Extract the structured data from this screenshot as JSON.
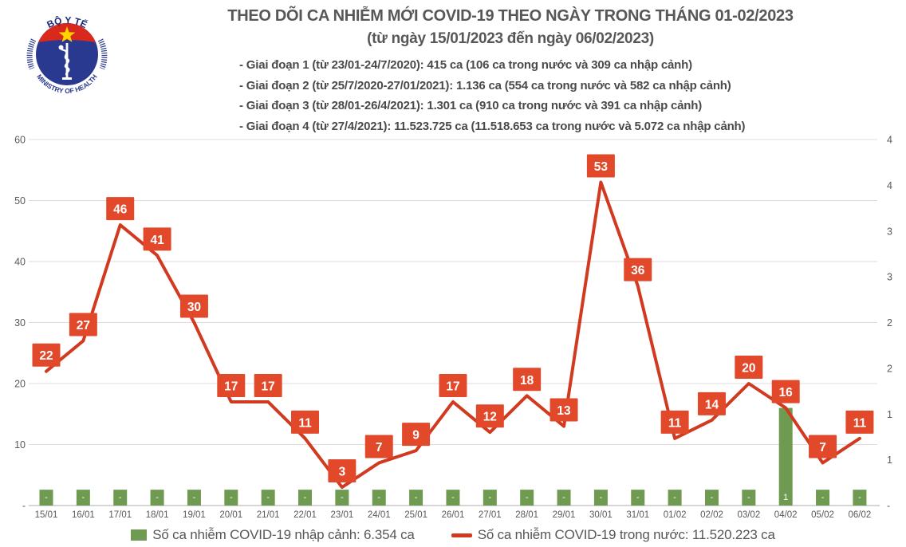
{
  "logo": {
    "top_text": "BỘ Y TẾ",
    "bottom_text": "MINISTRY OF HEALTH"
  },
  "header": {
    "title_line1": "THEO DÕI CA NHIỄM MỚI COVID-19 THEO NGÀY TRONG THÁNG 01-02/2023",
    "title_line2": "(từ ngày 15/01/2023 đến ngày 06/02/2023)",
    "bullets": [
      "- Giai đoạn 1 (từ 23/01-24/7/2020): 415 ca (106 ca trong nước và 309 ca nhập cảnh)",
      "- Giai đoạn 2 (từ 25/7/2020-27/01/2021): 1.136 ca (554 ca trong nước và 582 ca nhập cảnh)",
      "- Giai đoạn 3 (từ 28/01-26/4/2021): 1.301 ca (910 ca trong nước và 391 ca nhập cảnh)",
      "- Giai đoạn 4 (từ 27/4/2021): 11.523.725 ca (11.518.653 ca trong nước và 5.072 ca nhập cảnh)"
    ]
  },
  "chart_data": {
    "type": "line+bar",
    "categories": [
      "15/01",
      "16/01",
      "17/01",
      "18/01",
      "19/01",
      "20/01",
      "21/01",
      "22/01",
      "23/01",
      "24/01",
      "25/01",
      "26/01",
      "27/01",
      "28/01",
      "29/01",
      "30/01",
      "31/01",
      "01/02",
      "02/02",
      "03/02",
      "04/02",
      "05/02",
      "06/02"
    ],
    "series": [
      {
        "name": "Số ca nhiễm COVID-19 trong nước",
        "type": "line",
        "axis": "left",
        "color": "#d23a20",
        "label_bg": "#e2492a",
        "values": [
          22,
          27,
          46,
          41,
          30,
          17,
          17,
          11,
          3,
          7,
          9,
          17,
          12,
          18,
          13,
          53,
          36,
          11,
          14,
          20,
          16,
          7,
          11
        ]
      },
      {
        "name": "Số ca nhiễm COVID-19 nhập cảnh",
        "type": "bar",
        "axis": "right",
        "color": "#6e9b51",
        "bar_labels": [
          "-",
          "-",
          "-",
          "-",
          "-",
          "-",
          "-",
          "-",
          "-",
          "-",
          "-",
          "-",
          "-",
          "-",
          "-",
          "-",
          "-",
          "-",
          "-",
          "-",
          "1",
          "-",
          "-"
        ],
        "bar_heights_left_axis_units": [
          2.6,
          2.6,
          2.6,
          2.6,
          2.6,
          2.6,
          2.6,
          2.6,
          2.6,
          2.6,
          2.6,
          2.6,
          2.6,
          2.6,
          2.6,
          2.6,
          2.6,
          2.6,
          2.6,
          2.6,
          16,
          2.6,
          2.6
        ]
      }
    ],
    "left_axis": {
      "tick_labels": [
        "60",
        "50",
        "40",
        "30",
        "20",
        "10",
        "-"
      ],
      "min": 0,
      "max": 60,
      "major_unit": 10
    },
    "right_axis": {
      "tick_labels_visible": [
        "4",
        "4",
        "3",
        "3",
        "2",
        "2",
        "1",
        "1",
        "-"
      ]
    },
    "grid": true,
    "legend_position": "bottom"
  },
  "legend": {
    "items": [
      {
        "swatch": "square",
        "color": "#6e9b51",
        "label": "Số ca nhiễm COVID-19 nhập cảnh: 6.354 ca"
      },
      {
        "swatch": "line",
        "color": "#d23a20",
        "label": "Số ca nhiễm COVID-19 trong nước: 11.520.223 ca"
      }
    ]
  }
}
